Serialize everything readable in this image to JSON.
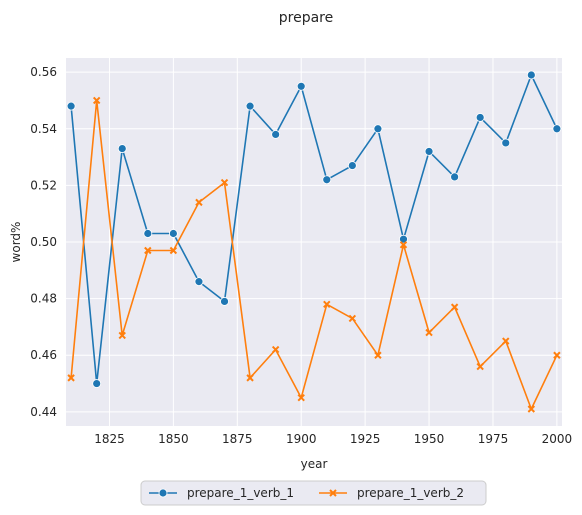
{
  "chart_data": {
    "type": "line",
    "title": "prepare",
    "xlabel": "year",
    "ylabel": "word%",
    "xlim": [
      1808,
      2002
    ],
    "ylim": [
      0.435,
      0.565
    ],
    "xticks": [
      1825,
      1850,
      1875,
      1900,
      1925,
      1950,
      1975,
      2000
    ],
    "xtick_labels": [
      "1825",
      "1850",
      "1875",
      "1900",
      "1925",
      "1950",
      "1975",
      "2000"
    ],
    "yticks": [
      0.44,
      0.46,
      0.48,
      0.5,
      0.52,
      0.54,
      0.56
    ],
    "ytick_labels": [
      "0.44",
      "0.46",
      "0.48",
      "0.50",
      "0.52",
      "0.54",
      "0.56"
    ],
    "grid": true,
    "legend_position": "bottom-center",
    "x": [
      1810,
      1820,
      1830,
      1840,
      1850,
      1860,
      1870,
      1880,
      1890,
      1900,
      1910,
      1920,
      1930,
      1940,
      1950,
      1960,
      1970,
      1980,
      1990,
      2000
    ],
    "series": [
      {
        "name": "prepare_1_verb_1",
        "color": "#1f77b4",
        "marker": "circle",
        "values": [
          0.548,
          0.45,
          0.533,
          0.503,
          0.503,
          0.486,
          0.479,
          0.548,
          0.538,
          0.555,
          0.522,
          0.527,
          0.54,
          0.501,
          0.532,
          0.523,
          0.544,
          0.535,
          0.559,
          0.54
        ]
      },
      {
        "name": "prepare_1_verb_2",
        "color": "#ff7f0e",
        "marker": "x",
        "values": [
          0.452,
          0.55,
          0.467,
          0.497,
          0.497,
          0.514,
          0.521,
          0.452,
          0.462,
          0.445,
          0.478,
          0.473,
          0.46,
          0.499,
          0.468,
          0.477,
          0.456,
          0.465,
          0.441,
          0.46
        ]
      }
    ]
  }
}
